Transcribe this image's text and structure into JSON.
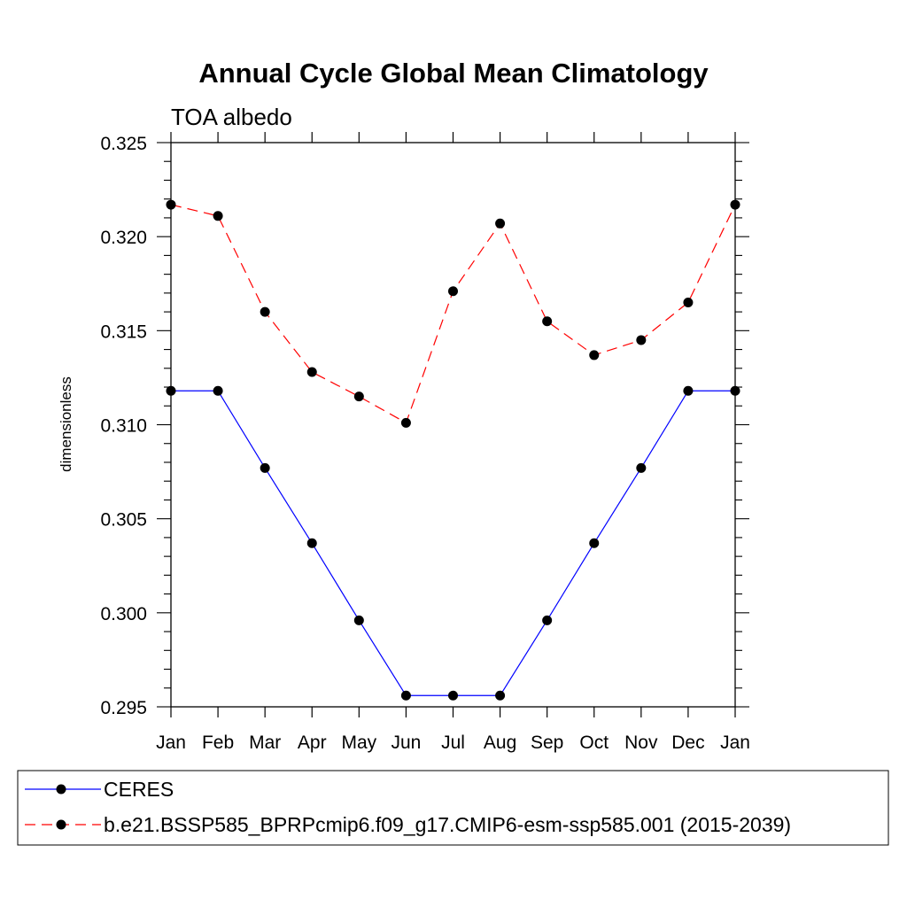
{
  "chart_data": {
    "type": "line",
    "title": "Annual Cycle Global Mean Climatology",
    "subtitle": "TOA albedo",
    "ylabel": "dimensionless",
    "xlabel": "",
    "categories": [
      "Jan",
      "Feb",
      "Mar",
      "Apr",
      "May",
      "Jun",
      "Jul",
      "Aug",
      "Sep",
      "Oct",
      "Nov",
      "Dec",
      "Jan"
    ],
    "ylim": [
      0.295,
      0.325
    ],
    "yticks": [
      "0.295",
      "0.300",
      "0.305",
      "0.310",
      "0.315",
      "0.320",
      "0.325"
    ],
    "legend_position": "bottom",
    "series": [
      {
        "name": "CERES",
        "color": "#0000ff",
        "dash": "solid",
        "values": [
          0.3118,
          0.3118,
          0.3077,
          0.3037,
          0.2996,
          0.2956,
          0.2956,
          0.2956,
          0.2996,
          0.3037,
          0.3077,
          0.3118,
          0.3118
        ]
      },
      {
        "name": "b.e21.BSSP585_BPRPcmip6.f09_g17.CMIP6-esm-ssp585.001 (2015-2039)",
        "color": "#ff0000",
        "dash": "dashed",
        "values": [
          0.3217,
          0.3211,
          0.316,
          0.3128,
          0.3115,
          0.3101,
          0.3171,
          0.3207,
          0.3155,
          0.3137,
          0.3145,
          0.3165,
          0.3217
        ]
      }
    ]
  }
}
